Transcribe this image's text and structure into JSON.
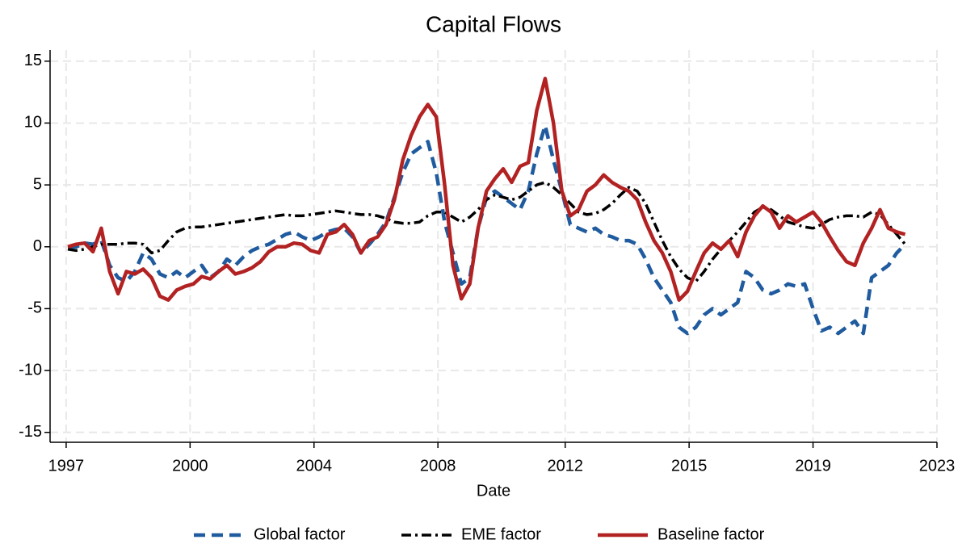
{
  "chart_data": {
    "type": "line",
    "title": "Capital Flows",
    "x_label": "Date",
    "x": [
      1997.25,
      1997.5,
      1997.75,
      1998,
      1998.25,
      1998.5,
      1998.75,
      1999,
      1999.25,
      1999.5,
      1999.75,
      2000,
      2000.25,
      2000.5,
      2000.75,
      2001,
      2001.25,
      2001.5,
      2001.75,
      2002,
      2002.25,
      2002.5,
      2002.75,
      2003,
      2003.25,
      2003.5,
      2003.75,
      2004,
      2004.25,
      2004.5,
      2004.75,
      2005,
      2005.25,
      2005.5,
      2005.75,
      2006,
      2006.25,
      2006.5,
      2006.75,
      2007,
      2007.25,
      2007.5,
      2007.75,
      2008,
      2008.25,
      2008.5,
      2008.75,
      2009,
      2009.25,
      2009.5,
      2009.75,
      2010,
      2010.25,
      2010.5,
      2010.75,
      2011,
      2011.25,
      2011.5,
      2011.75,
      2012,
      2012.25,
      2012.5,
      2012.75,
      2013,
      2013.25,
      2013.5,
      2013.75,
      2014,
      2014.25,
      2014.5,
      2014.75,
      2015,
      2015.25,
      2015.5,
      2015.75,
      2016,
      2016.25,
      2016.5,
      2016.75,
      2017,
      2017.25,
      2017.5,
      2017.75,
      2018,
      2018.25,
      2018.5,
      2018.75,
      2019,
      2019.25,
      2019.5,
      2019.75,
      2020,
      2020.25,
      2020.5,
      2020.75,
      2021,
      2021.25,
      2021.5,
      2021.75,
      2022,
      2022.25
    ],
    "series": [
      {
        "name": "Global factor",
        "color": "#1f5b9e",
        "dash": "14 8",
        "width": 4.5,
        "values": [
          0,
          0,
          0.3,
          0.2,
          0.5,
          -1.5,
          -2.5,
          -2.8,
          -2.0,
          -0.5,
          -1.0,
          -2.2,
          -2.5,
          -2.0,
          -2.5,
          -2.0,
          -1.5,
          -2.5,
          -2.0,
          -1.0,
          -1.5,
          -0.8,
          -0.3,
          0,
          0.2,
          0.6,
          1.0,
          1.2,
          0.8,
          0.5,
          0.8,
          1.2,
          1.4,
          1.5,
          0.8,
          -0.5,
          0.2,
          1.0,
          2.0,
          4.0,
          6.0,
          7.5,
          8.0,
          8.5,
          6.0,
          2.0,
          -0.5,
          -3.0,
          -2.5,
          1.5,
          4.0,
          4.5,
          4.0,
          3.5,
          3.0,
          4.5,
          7.5,
          9.8,
          7.0,
          4.5,
          1.8,
          1.5,
          1.2,
          1.5,
          1.0,
          0.8,
          0.5,
          0.5,
          0.2,
          -1.0,
          -2.5,
          -3.5,
          -4.5,
          -6.5,
          -7.0,
          -6.5,
          -5.5,
          -5.0,
          -5.5,
          -5.0,
          -4.5,
          -2.0,
          -2.5,
          -3.5,
          -3.8,
          -3.5,
          -3.0,
          -3.2,
          -3.0,
          -5.0,
          -6.8,
          -6.5,
          -7.0,
          -6.5,
          -6.0,
          -7.0,
          -2.5,
          -2.0,
          -1.5,
          -0.5,
          0.2
        ]
      },
      {
        "name": "EME factor",
        "color": "#000000",
        "dash": "12 5 3 5",
        "width": 3.5,
        "values": [
          -0.2,
          -0.3,
          -0.2,
          0,
          0.2,
          0.2,
          0.2,
          0.3,
          0.3,
          0.2,
          -0.5,
          -0.3,
          0.5,
          1.2,
          1.5,
          1.6,
          1.6,
          1.7,
          1.8,
          1.9,
          2.0,
          2.1,
          2.2,
          2.3,
          2.4,
          2.5,
          2.6,
          2.5,
          2.5,
          2.6,
          2.7,
          2.8,
          2.9,
          2.8,
          2.7,
          2.6,
          2.6,
          2.5,
          2.3,
          2.0,
          1.9,
          1.9,
          2.0,
          2.5,
          2.8,
          2.8,
          2.4,
          2.0,
          2.4,
          3.0,
          3.8,
          4.2,
          4.0,
          3.8,
          4.0,
          4.5,
          5.0,
          5.2,
          4.8,
          4.2,
          3.5,
          2.8,
          2.6,
          2.7,
          3.0,
          3.5,
          4.2,
          4.8,
          4.5,
          3.5,
          2.0,
          0.5,
          -0.8,
          -1.8,
          -2.5,
          -2.8,
          -2.0,
          -1.0,
          -0.2,
          0.5,
          1.2,
          2.0,
          2.8,
          3.2,
          3.0,
          2.5,
          2.0,
          1.8,
          1.6,
          1.5,
          1.8,
          2.2,
          2.4,
          2.5,
          2.5,
          2.4,
          2.8,
          2.6,
          1.8,
          1.0,
          0.2
        ]
      },
      {
        "name": "Baseline factor",
        "color": "#b22222",
        "dash": "none",
        "width": 4.5,
        "values": [
          0,
          0.2,
          0.3,
          -0.4,
          1.5,
          -2,
          -3.8,
          -2,
          -2.2,
          -1.8,
          -2.5,
          -4.0,
          -4.3,
          -3.5,
          -3.2,
          -3.0,
          -2.4,
          -2.6,
          -2.0,
          -1.5,
          -2.2,
          -2.0,
          -1.7,
          -1.2,
          -0.4,
          0,
          0,
          0.3,
          0.2,
          -0.3,
          -0.5,
          1.0,
          1.2,
          1.8,
          1.0,
          -0.5,
          0.5,
          0.8,
          1.8,
          3.8,
          7,
          9,
          10.5,
          11.5,
          10.5,
          5,
          -1.5,
          -4.2,
          -3,
          1.5,
          4.5,
          5.5,
          6.3,
          5.2,
          6.5,
          6.8,
          11,
          13.6,
          10,
          4.5,
          2.5,
          3,
          4.5,
          5,
          5.8,
          5.2,
          4.8,
          4.5,
          3.8,
          2,
          0.5,
          -0.5,
          -2,
          -4.3,
          -3.6,
          -2,
          -0.5,
          0.3,
          -0.2,
          0.5,
          -0.8,
          1.2,
          2.5,
          3.3,
          2.8,
          1.5,
          2.5,
          2.0,
          2.4,
          2.8,
          2.0,
          0.8,
          -0.3,
          -1.2,
          -1.5,
          0.3,
          1.5,
          3.0,
          1.5,
          1.2,
          1.0
        ]
      }
    ],
    "xlim": [
      1996.72,
      2023.2
    ],
    "xticks": [
      {
        "value": 1997.2,
        "label": "1997"
      },
      {
        "value": 2000.9,
        "label": "2000"
      },
      {
        "value": 2004.6,
        "label": "2004"
      },
      {
        "value": 2008.3,
        "label": "2008"
      },
      {
        "value": 2012.1,
        "label": "2012"
      },
      {
        "value": 2015.8,
        "label": "2015"
      },
      {
        "value": 2019.5,
        "label": "2019"
      },
      {
        "value": 2023.2,
        "label": "2023"
      }
    ],
    "ylim": [
      -15.8,
      15.9
    ],
    "yticks": [
      15,
      10,
      5,
      0,
      -5,
      -10,
      -15
    ],
    "grid": true
  }
}
